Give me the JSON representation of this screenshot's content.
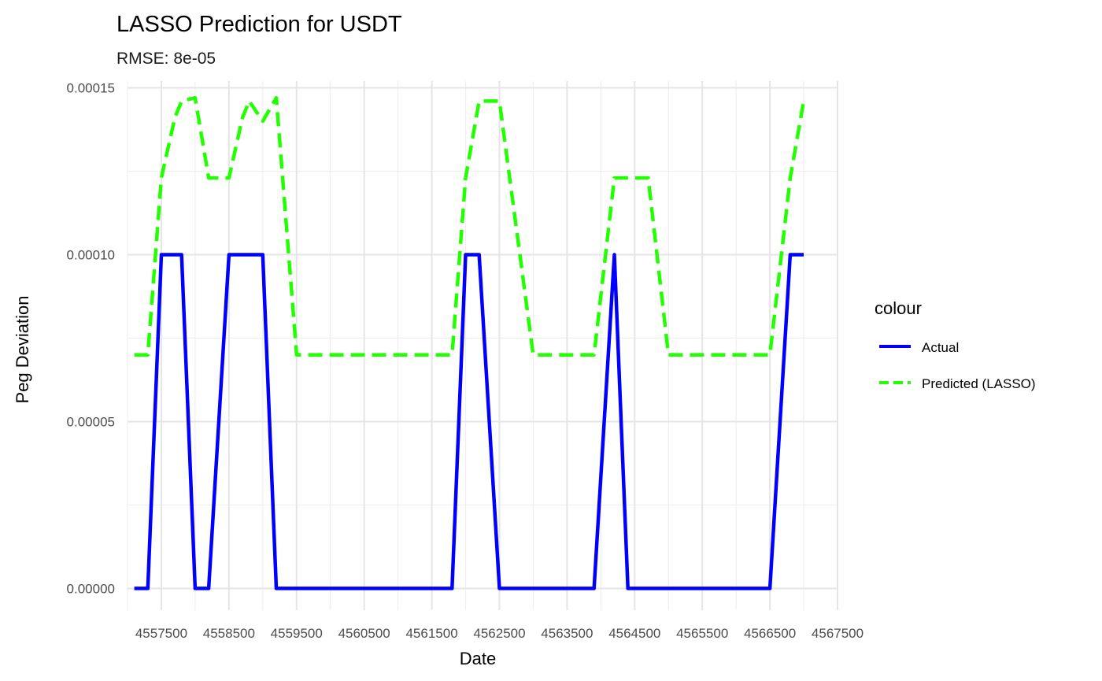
{
  "chart_data": {
    "type": "line",
    "title": "LASSO Prediction for USDT",
    "subtitle": "RMSE: 8e-05",
    "xlabel": "Date",
    "ylabel": "Peg Deviation",
    "xlim": [
      4557000,
      4567500
    ],
    "ylim": [
      -6.5e-06,
      0.000152
    ],
    "x_ticks": [
      "4557500",
      "4558500",
      "4559500",
      "4560500",
      "4561500",
      "4562500",
      "4563500",
      "4564500",
      "4565500",
      "4566500",
      "4567500"
    ],
    "y_ticks": [
      "0.00000",
      "0.00005",
      "0.00010",
      "0.00015"
    ],
    "grid": true,
    "legend": {
      "title": "colour",
      "position": "right"
    },
    "series": [
      {
        "name": "Actual",
        "color": "#0000ff",
        "style": "solid",
        "x": [
          4557100,
          4557300,
          4557500,
          4557700,
          4557800,
          4558000,
          4558200,
          4558500,
          4558700,
          4558800,
          4559000,
          4559200,
          4559500,
          4560000,
          4560500,
          4561000,
          4561500,
          4561800,
          4562000,
          4562200,
          4562500,
          4563000,
          4563500,
          4563900,
          4564200,
          4564400,
          4564700,
          4565000,
          4565500,
          4566000,
          4566300,
          4566500,
          4566800,
          4567000
        ],
        "y": [
          0,
          0,
          0.0001,
          0.0001,
          0.0001,
          0,
          0,
          0.0001,
          0.0001,
          0.0001,
          0.0001,
          0,
          0,
          0,
          0,
          0,
          0,
          0,
          0.0001,
          0.0001,
          0,
          0,
          0,
          0,
          0.0001,
          0,
          0,
          0,
          0,
          0,
          0,
          0,
          0.0001,
          0.0001
        ]
      },
      {
        "name": "Predicted (LASSO)",
        "color": "#22ff00",
        "style": "dashed",
        "x": [
          4557100,
          4557300,
          4557500,
          4557700,
          4557800,
          4558000,
          4558200,
          4558500,
          4558700,
          4558800,
          4559000,
          4559200,
          4559500,
          4560000,
          4560500,
          4561000,
          4561500,
          4561800,
          4562000,
          4562200,
          4562500,
          4563000,
          4563500,
          4563900,
          4564200,
          4564400,
          4564700,
          4565000,
          4565500,
          4566000,
          4566300,
          4566500,
          4566800,
          4567000
        ],
        "y": [
          7e-05,
          7e-05,
          0.000123,
          0.000141,
          0.000146,
          0.000147,
          0.000123,
          0.000123,
          0.000141,
          0.000146,
          0.00014,
          0.000147,
          7e-05,
          7e-05,
          7e-05,
          7e-05,
          7e-05,
          7e-05,
          0.000123,
          0.000146,
          0.000146,
          7e-05,
          7e-05,
          7e-05,
          0.000123,
          0.000123,
          0.000123,
          7e-05,
          7e-05,
          7e-05,
          7e-05,
          7e-05,
          0.000123,
          0.000146
        ]
      }
    ]
  }
}
